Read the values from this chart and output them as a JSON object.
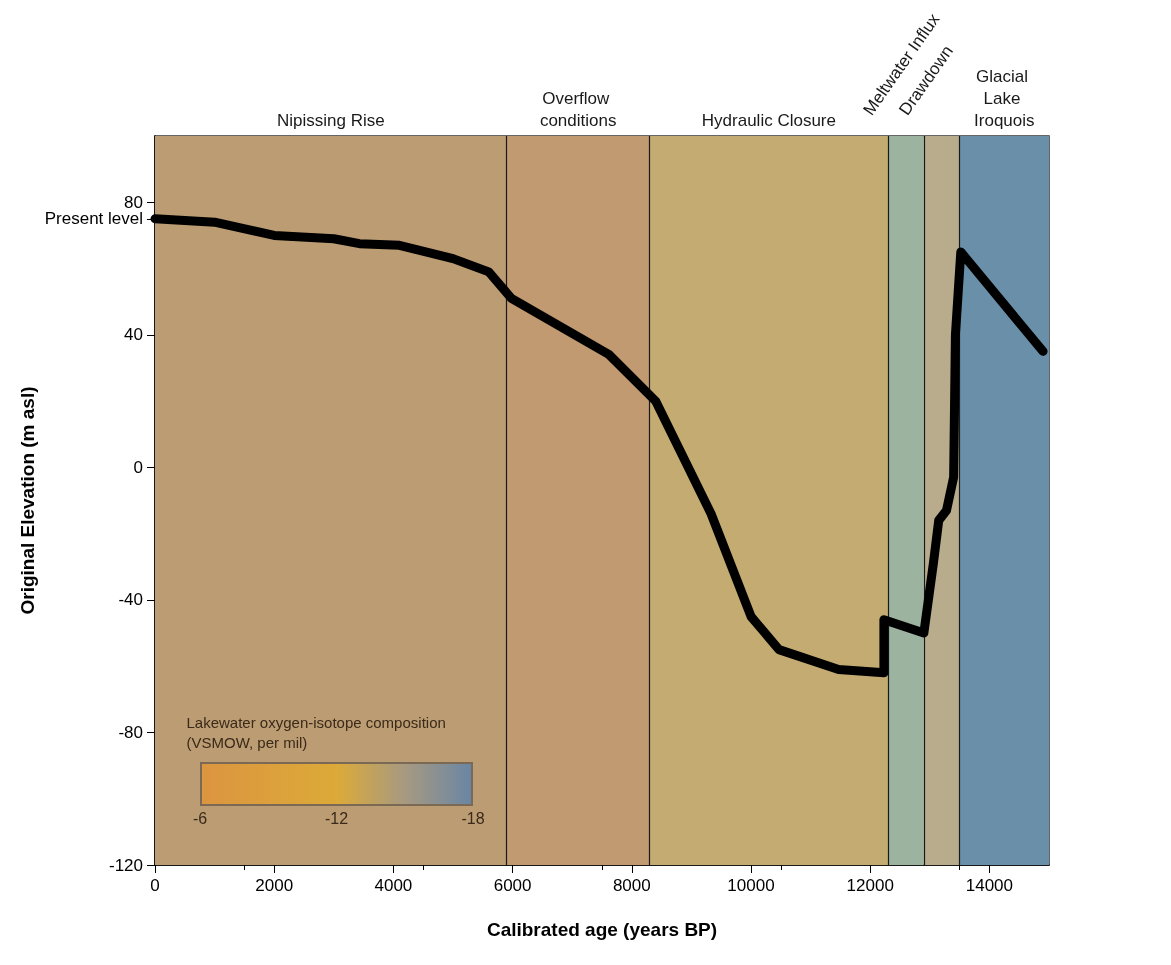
{
  "chart_data": {
    "type": "line",
    "xlabel": "Calibrated age (years BP)",
    "ylabel": "Original Elevation (m asl)",
    "clabel": "Lakewater oxygen-isotope composition\n(VSMOW, per mil)",
    "annotations": [
      "-6",
      "-12",
      "-18"
    ],
    "x": [
      0,
      1000,
      2000,
      3000,
      3430,
      4100,
      5000,
      5600,
      5980,
      7620,
      8400,
      9330,
      10000,
      10470,
      11470,
      12230,
      12230,
      12900,
      13060,
      13150,
      13280,
      13400,
      13430,
      13520,
      14900
    ],
    "values": [
      75,
      74,
      70,
      69,
      67.5,
      67,
      63,
      59,
      51,
      34,
      20,
      -14,
      -45,
      -55,
      -61,
      -62,
      -46,
      -50,
      -29,
      -16,
      -13,
      -3,
      40,
      65,
      35
    ],
    "color": "#000000",
    "line_style": "solid",
    "xlim": [
      0,
      15000
    ],
    "xticks": [
      0,
      2000,
      4000,
      6000,
      8000,
      10000,
      12000,
      14000
    ],
    "ylim": [
      -120,
      100
    ],
    "yticks": [
      -120,
      -80,
      -40,
      0,
      40,
      {
        "value": 75,
        "label": "Present level"
      },
      80
    ],
    "grid": false,
    "bands": [
      {
        "axis": "x",
        "from": 0,
        "to": 5900,
        "label": "Nipissing Rise",
        "color": "#bc9c72"
      },
      {
        "axis": "x",
        "from": 5900,
        "to": 8300,
        "label": "Overflow conditions",
        "color": "#c19a72"
      },
      {
        "axis": "x",
        "from": 8300,
        "to": 12300,
        "label": "Hydraulic Closure",
        "color": "#c3ab72"
      },
      {
        "axis": "x",
        "from": 12300,
        "to": 12900,
        "label": "Meltwater Influx",
        "color": "#9cb3a0"
      },
      {
        "axis": "x",
        "from": 12900,
        "to": 13500,
        "label": "Drawdown",
        "color": "#b8ac8c"
      },
      {
        "axis": "x",
        "from": 13500,
        "to": 15000,
        "label": "Glacial Lake Iroquois",
        "color": "#6a8fa8"
      }
    ],
    "ref_lines": [
      {
        "axis": "x",
        "value": 5900,
        "color": "#1a1a1a"
      },
      {
        "axis": "x",
        "value": 8300,
        "color": "#1a1a1a"
      },
      {
        "axis": "x",
        "value": 12300,
        "color": "#1a1a1a"
      },
      {
        "axis": "x",
        "value": 12900,
        "color": "#1a1a1a"
      },
      {
        "axis": "x",
        "value": 13500,
        "color": "#1a1a1a"
      }
    ]
  }
}
